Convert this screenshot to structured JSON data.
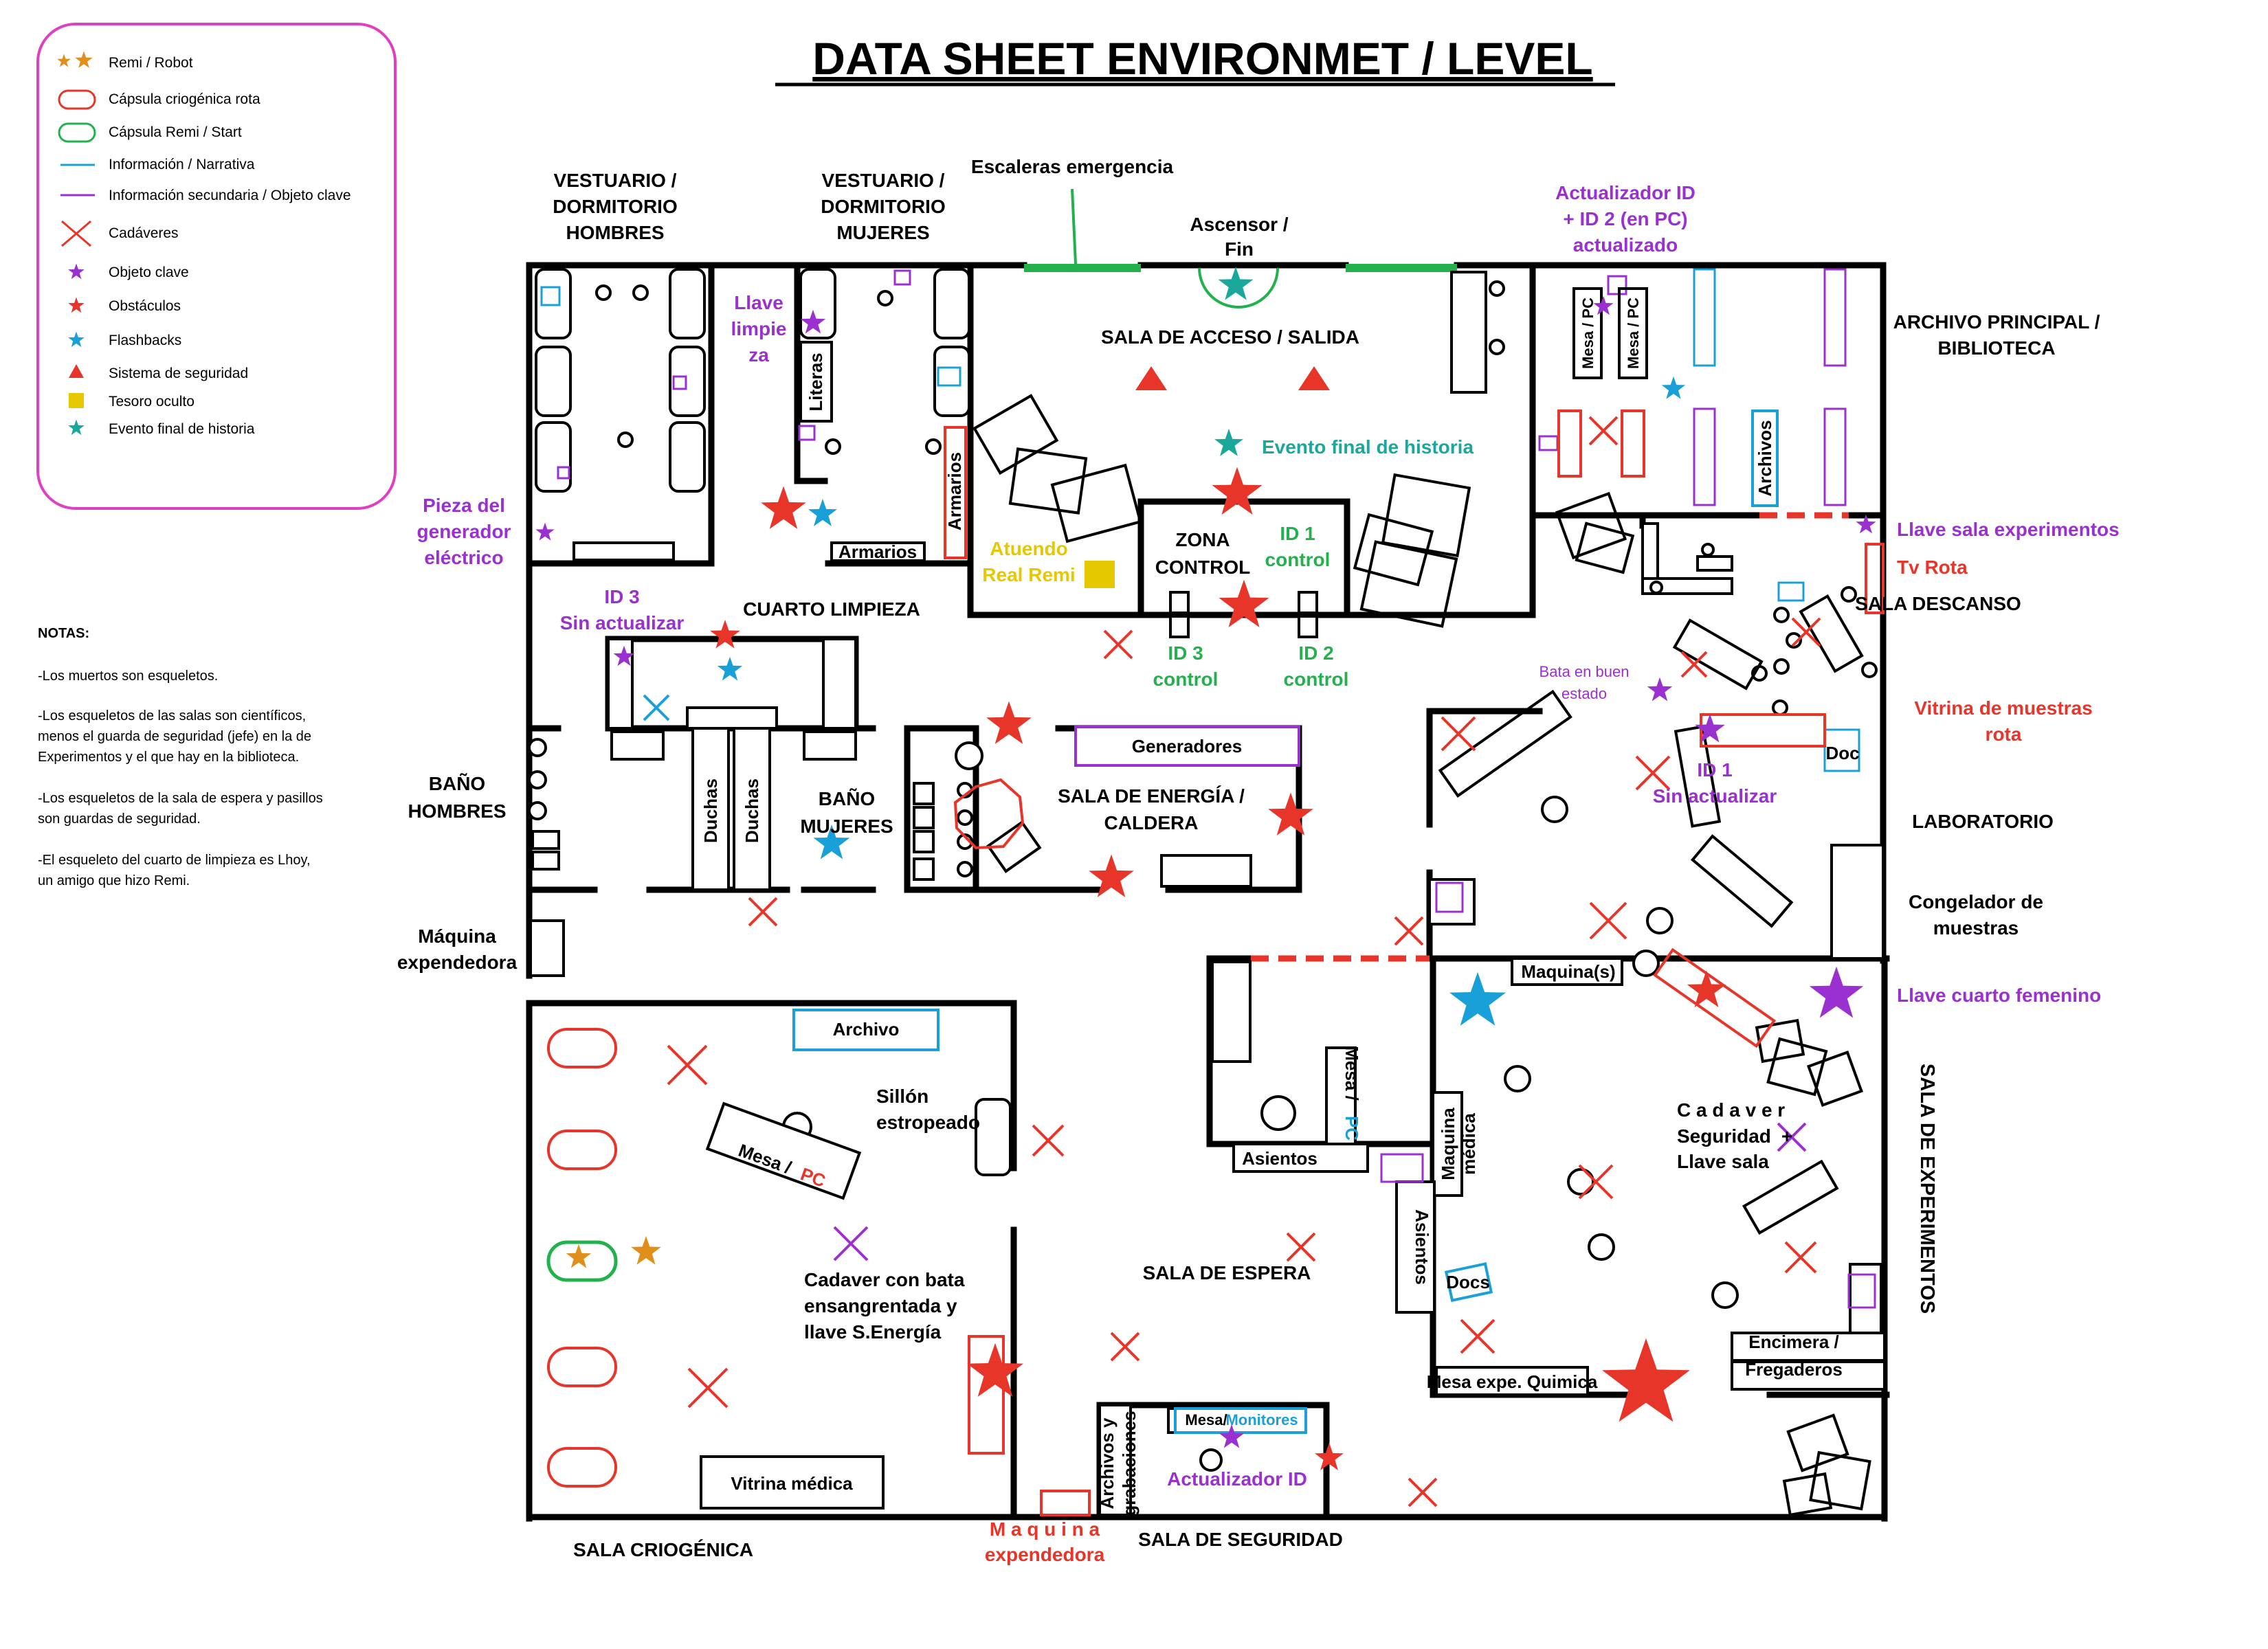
{
  "title": "DATA SHEET ENVIRONMET / LEVEL",
  "colors": {
    "wall": "#000000",
    "red": "#e8352a",
    "green": "#22b14c",
    "blue": "#1aa0d8",
    "purple": "#9b30d0",
    "orange": "#e0901a",
    "yellow": "#e6c800",
    "teal": "#1aa89a",
    "legend_border": "#e040c0"
  },
  "legend": [
    {
      "icon": "orange-stars-icon",
      "label": "Remi / Robot"
    },
    {
      "icon": "red-capsule-icon",
      "label": "Cápsula criogénica rota"
    },
    {
      "icon": "green-capsule-icon",
      "label": "Cápsula Remi / Start"
    },
    {
      "icon": "blue-line-icon",
      "label": "Información / Narrativa"
    },
    {
      "icon": "purple-line-icon",
      "label": "Información secundaria / Objeto clave"
    },
    {
      "icon": "red-cross-icon",
      "label": "Cadáveres"
    },
    {
      "icon": "purple-star-icon",
      "label": "Objeto clave"
    },
    {
      "icon": "red-star-icon",
      "label": "Obstáculos"
    },
    {
      "icon": "blue-star-icon",
      "label": "Flashbacks"
    },
    {
      "icon": "red-triangle-icon",
      "label": "Sistema de seguridad"
    },
    {
      "icon": "yellow-square-icon",
      "label": "Tesoro oculto"
    },
    {
      "icon": "teal-star-icon",
      "label": "Evento final de historia"
    }
  ],
  "notes": {
    "heading": "NOTAS:",
    "items": [
      "-Los muertos son esqueletos.",
      "-Los esqueletos de las salas son científicos,",
      "menos el guarda de seguridad (jefe) en la de",
      "Experimentos y el que hay en la biblioteca.",
      "-Los esqueletos de la sala de espera y pasillos",
      "son guardas de seguridad.",
      "-El esqueleto del cuarto de limpieza es Lhoy,",
      "un amigo que hizo Remi."
    ]
  },
  "rooms": {
    "vestuario_h": [
      "VESTUARIO /",
      "DORMITORIO",
      "HOMBRES"
    ],
    "vestuario_m": [
      "VESTUARIO /",
      "DORMITORIO",
      "MUJERES"
    ],
    "escaleras": "Escaleras emergencia",
    "ascensor": [
      "Ascensor /",
      "Fin"
    ],
    "sala_acceso": "SALA DE ACCESO / SALIDA",
    "archivo_principal": [
      "ARCHIVO PRINCIPAL /",
      "BIBLIOTECA"
    ],
    "zona_control": [
      "ZONA",
      "CONTROL"
    ],
    "cuarto_limpieza": "CUARTO LIMPIEZA",
    "sala_descanso": "SALA DESCANSO",
    "bano_h": [
      "BAÑO",
      "HOMBRES"
    ],
    "bano_m": [
      "BAÑO",
      "MUJERES"
    ],
    "sala_energia": [
      "SALA DE ENERGÍA /",
      "CALDERA"
    ],
    "laboratorio": "LABORATORIO",
    "maquina_exp_left": [
      "Máquina",
      "expendedora"
    ],
    "congelador": [
      "Congelador de",
      "muestras"
    ],
    "sala_experimentos": "SALA DE EXPERIMENTOS",
    "sala_espera": "SALA DE ESPERA",
    "sala_criogenica": "SALA CRIOGÉNICA",
    "sala_seguridad": "SALA DE SEGURIDAD",
    "maquina_exp_bottom": [
      "M a q u i n a",
      "expendedora"
    ]
  },
  "labels": {
    "actualizador_top": [
      "Actualizador ID",
      "+ ID 2 (en PC)",
      "actualizado"
    ],
    "llave_limpieza": [
      "Llave",
      "limpie",
      "za"
    ],
    "pieza_generador": [
      "Pieza del",
      "generador",
      "eléctrico"
    ],
    "evento_final": "Evento final de historia",
    "atuendo": [
      "Atuendo",
      "Real Remi"
    ],
    "id1_control": [
      "ID 1",
      "control"
    ],
    "id3_control": [
      "ID 3",
      "control"
    ],
    "id2_control": [
      "ID 2",
      "control"
    ],
    "id3_sin": [
      "ID 3",
      "Sin actualizar"
    ],
    "llave_sala_exp": "Llave sala experimentos",
    "tv_rota": "Tv Rota",
    "bata_buen": [
      "Bata en buen",
      "estado"
    ],
    "vitrina_rota": [
      "Vitrina de muestras",
      "rota"
    ],
    "id1_sin": [
      "ID 1",
      "Sin actualizar"
    ],
    "llave_cuarto_fem": "Llave cuarto femenino",
    "cadaver_seguridad": [
      "C a d a v e r",
      "Seguridad",
      "Llave sala"
    ],
    "cadaver_bata": [
      "Cadaver con bata",
      "ensangrentada y",
      "llave S.Energía"
    ],
    "sillon": [
      "Sillón",
      "estropeado"
    ],
    "actualizador_id": "Actualizador ID",
    "plus": "+"
  },
  "furniture": {
    "literas": "Literas",
    "armarios_v": "Armarios",
    "armarios_h": "Armarios",
    "mesa_pc": "Mesa / PC",
    "archivos_v": "Archivos",
    "generadores": "Generadores",
    "duchas": "Duchas",
    "doc": "Doc",
    "docs": "Docs",
    "maquinas": "Maquina(s)",
    "mesa_slash": "Mesa /",
    "pc": "PC",
    "asientos": "Asientos",
    "maquina_medica": [
      "Maquina",
      "médica"
    ],
    "archivo": "Archivo",
    "mesa_exp": "Mesa expe. Quimica",
    "encimera": [
      "Encimera /",
      "Fregaderos"
    ],
    "vitrina_medica": "Vitrina médica",
    "archivos_grab": [
      "Archivos y",
      "grabaciones"
    ],
    "mesa_monitores_a": "Mesa/",
    "mesa_monitores_b": "Monitores"
  }
}
